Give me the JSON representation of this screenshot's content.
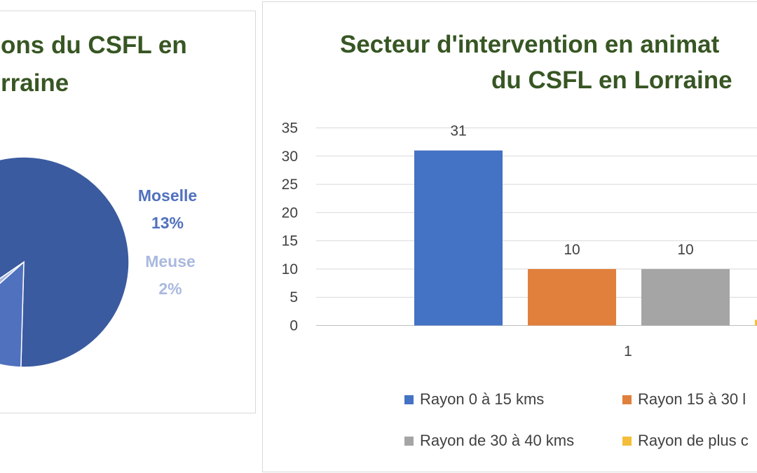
{
  "colors": {
    "title": "#375623",
    "blue": "#4472C4",
    "orange": "#E0803C",
    "gray": "#A5A5A5",
    "yellow": "#F4BE3A",
    "pie_dark": "#3B5BA0",
    "pie_mid": "#4F71BE",
    "pie_light": "#A9B9DF"
  },
  "chart_data": [
    {
      "type": "pie",
      "title_lines": [
        "ons du CSFL en",
        "rraine"
      ],
      "slices": [
        {
          "label": "",
          "percent": 85,
          "color": "#3B5BA0"
        },
        {
          "label": "Moselle",
          "percent": 13,
          "value_label": "13%",
          "color": "#4F71BE"
        },
        {
          "label": "Meuse",
          "percent": 2,
          "value_label": "2%",
          "color": "#A9B9DF"
        }
      ]
    },
    {
      "type": "bar",
      "title_lines": [
        "Secteur d'intervention en animat",
        "du CSFL en Lorraine"
      ],
      "categories": [
        "1"
      ],
      "ylim": [
        0,
        35
      ],
      "yticks": [
        0,
        5,
        10,
        15,
        20,
        25,
        30,
        35
      ],
      "grid": true,
      "legend_position": "bottom",
      "series": [
        {
          "name": "Rayon 0 à 15 kms",
          "values": [
            31
          ],
          "color": "#4472C4"
        },
        {
          "name": "Rayon 15 à 30 l",
          "values": [
            10
          ],
          "color": "#E0803C"
        },
        {
          "name": "Rayon de 30 à 40 kms",
          "values": [
            10
          ],
          "color": "#A5A5A5"
        },
        {
          "name": "Rayon de plus c",
          "values": [
            1
          ],
          "color": "#F4BE3A"
        }
      ]
    }
  ]
}
